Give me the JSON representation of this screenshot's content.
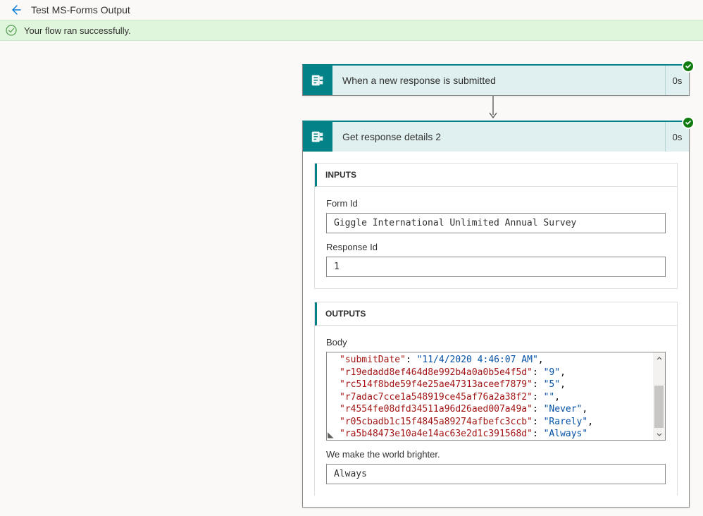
{
  "header": {
    "flow_name": "Test MS-Forms Output"
  },
  "banner": {
    "message": "Your flow ran successfully."
  },
  "colors": {
    "connector_bg": "#038387",
    "action_header_bg": "#e0f0f0",
    "success_bg": "#dff6dd",
    "success_icon": "#599e56",
    "status_badge": "#107c10",
    "link_blue": "#0078d4",
    "json_key": "#a31515",
    "json_string": "#0451a5"
  },
  "actions": {
    "trigger": {
      "title": "When a new response is submitted",
      "duration": "0s"
    },
    "step1": {
      "title": "Get response details 2",
      "duration": "0s",
      "inputs": {
        "heading": "INPUTS",
        "form_id_label": "Form Id",
        "form_id_value": "Giggle International Unlimited Annual Survey",
        "response_id_label": "Response Id",
        "response_id_value": "1"
      },
      "outputs": {
        "heading": "OUTPUTS",
        "body_label": "Body",
        "body_json": [
          {
            "key": "submitDate",
            "value": "11/4/2020 4:46:07 AM",
            "trailing_comma": true
          },
          {
            "key": "r19edadd8ef464d8e992b4a0a0b5e4f5d",
            "value": "9",
            "trailing_comma": true
          },
          {
            "key": "rc514f8bde59f4e25ae47313aceef7879",
            "value": "5",
            "trailing_comma": true
          },
          {
            "key": "r7adac7cce1a548919ce45af76a2a38f2",
            "value": "",
            "trailing_comma": true
          },
          {
            "key": "r4554fe08dfd34511a96d26aed007a49a",
            "value": "Never",
            "trailing_comma": true
          },
          {
            "key": "r05cbadb1c15f4845a89274afbefc3ccb",
            "value": "Rarely",
            "trailing_comma": true
          },
          {
            "key": "ra5b48473e10a4e14ac63e2d1c391568d",
            "value": "Always",
            "trailing_comma": false
          }
        ],
        "q1_label": "We make the world brighter.",
        "q1_value": "Always"
      }
    }
  }
}
